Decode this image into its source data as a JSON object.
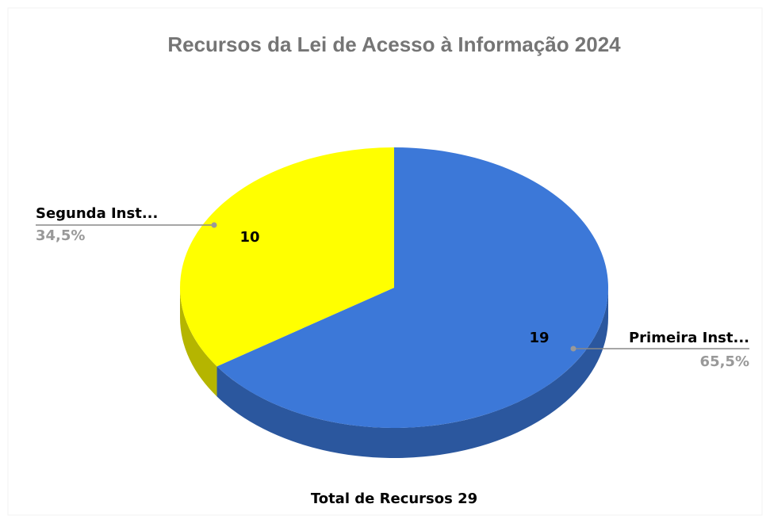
{
  "chart_data": {
    "type": "pie",
    "title": "Recursos da Lei de Acesso à Informação 2024",
    "categories": [
      "Primeira Inst...",
      "Segunda Inst..."
    ],
    "values": [
      19,
      10
    ],
    "percentage_labels": [
      "65,5%",
      "34,5%"
    ],
    "colors": [
      "#3c78d8",
      "#ffff00"
    ],
    "side_colors": [
      "#2b579e",
      "#b5b500"
    ],
    "footer": "Total de Recursos 29"
  }
}
